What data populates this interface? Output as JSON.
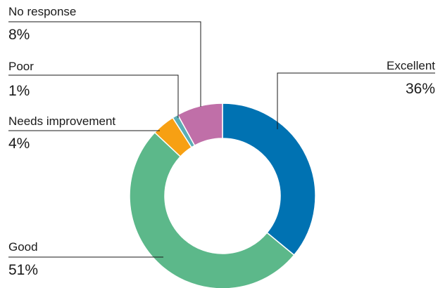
{
  "chart_data": {
    "type": "pie",
    "donut": true,
    "categories": [
      "Excellent",
      "Good",
      "Needs improvement",
      "Poor",
      "No response"
    ],
    "values": [
      36,
      51,
      4,
      1,
      8
    ],
    "value_labels": [
      "36%",
      "51%",
      "4%",
      "1%",
      "8%"
    ],
    "colors": [
      "#0072B2",
      "#5CB88A",
      "#F7A013",
      "#5AAEB5",
      "#C06FA8"
    ],
    "title": "",
    "legend": "none"
  }
}
